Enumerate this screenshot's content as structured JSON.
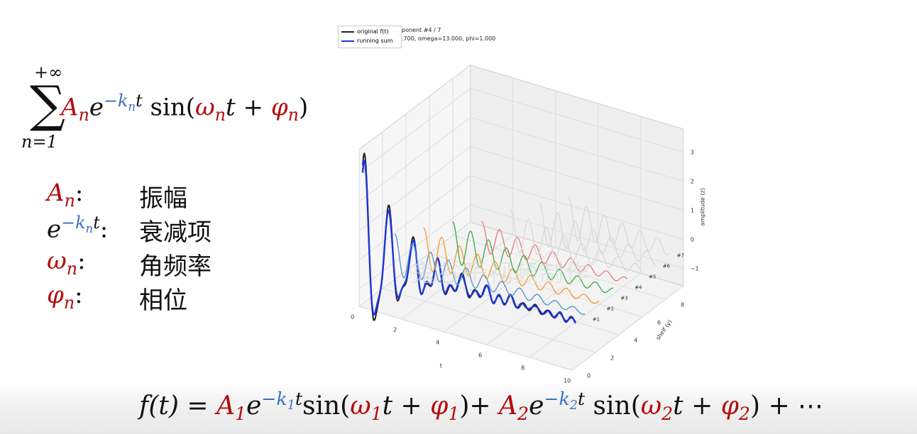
{
  "sum_formula": {
    "upper": "+∞",
    "sigma": "∑",
    "lower": "n=1",
    "A": "A",
    "A_sub": "n",
    "e": "e",
    "neg_k": "−k",
    "k_sub": "n",
    "t_exp": "t",
    "sin_open": " sin(",
    "omega": "ω",
    "omega_sub": "n",
    "t": "t",
    "plus": " + ",
    "phi": "φ",
    "phi_sub": "n",
    "close": ")"
  },
  "legend_items": [
    {
      "sym": "A",
      "sub": "n",
      "desc": "振幅"
    },
    {
      "sym": "e",
      "sup": "−k",
      "sup_sub": "n",
      "sup_t": "t",
      "desc": "衰减项"
    },
    {
      "sym": "ω",
      "sub": "n",
      "desc": "角频率"
    },
    {
      "sym": "φ",
      "sub": "n",
      "desc": "相位"
    }
  ],
  "bottom_formula": {
    "lhs": "f(t) = ",
    "A1": "A",
    "A1_sub": "1",
    "e1": "e",
    "k1": "−k",
    "k1_sub": "1",
    "t1": "t",
    "sin1": "sin(",
    "w1": "ω",
    "w1_sub": "1",
    "tt1": "t",
    "plus1": " + ",
    "p1": "φ",
    "p1_sub": "1",
    "close1": ")+ ",
    "A2": "A",
    "A2_sub": "2",
    "e2": "e",
    "k2": "−k",
    "k2_sub": "2",
    "t2": "t",
    "sin2": " sin(",
    "w2": "ω",
    "w2_sub": "2",
    "tt2": "t",
    "plus2": " + ",
    "p2": "φ",
    "p2_sub": "2",
    "close2": ") + ⋯"
  },
  "plot": {
    "legend": [
      {
        "label": "original f(t)",
        "color": "#222222"
      },
      {
        "label": "running sum",
        "color": "#1f35d6"
      }
    ],
    "title_line1": "ponent #4 / 7",
    "title_line2": ".700, omega=13.000, phi=1.000",
    "watermark": "鬼谷子视频制作",
    "xlabel": "t",
    "ylabel": "shelf (y)",
    "zlabel": "amplitude (z)"
  },
  "chart_data": {
    "type": "line",
    "xlabel": "t",
    "ylabel": "shelf (y)",
    "zlabel": "amplitude (z)",
    "x_ticks": [
      "0",
      "2",
      "4",
      "6",
      "8",
      "10"
    ],
    "y_ticks": [
      "0",
      "2",
      "4",
      "6",
      "8"
    ],
    "z_ticks": [
      "3",
      "2",
      "1",
      "0",
      "−1"
    ],
    "series": [
      {
        "name": "original f(t)",
        "color": "#222222"
      },
      {
        "name": "running sum",
        "color": "#1f35d6"
      },
      {
        "name": "#1",
        "color": "#4a90c8"
      },
      {
        "name": "#2",
        "color": "#f39a2c"
      },
      {
        "name": "#3",
        "color": "#3da843"
      },
      {
        "name": "#4",
        "color": "#e8787a"
      },
      {
        "name": "#5",
        "color": "#d8d8d8"
      },
      {
        "name": "#6",
        "color": "#d8d8d8"
      },
      {
        "name": "#7",
        "color": "#d8d8d8"
      }
    ]
  }
}
